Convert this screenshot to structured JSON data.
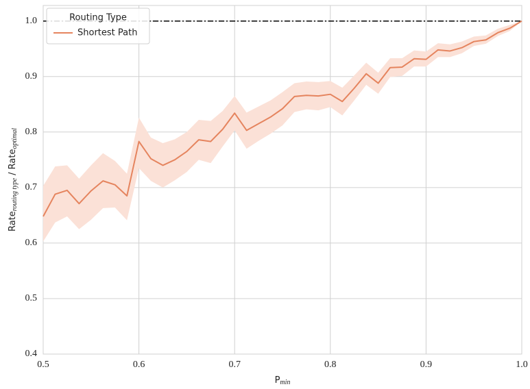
{
  "chart_data": {
    "type": "line",
    "xlabel": {
      "text": "P",
      "sub": "min"
    },
    "ylabel": {
      "parts": [
        {
          "text": "Rate",
          "sub": "routing type"
        },
        {
          "text": " / Rate",
          "sub": "optimal"
        }
      ]
    },
    "legend_title": "Routing Type",
    "legend": "upper left",
    "grid": true,
    "x": [
      0.5,
      0.5125,
      0.525,
      0.5375,
      0.55,
      0.5625,
      0.575,
      0.5875,
      0.6,
      0.6125,
      0.625,
      0.6375,
      0.65,
      0.6625,
      0.675,
      0.6875,
      0.7,
      0.7125,
      0.725,
      0.7375,
      0.75,
      0.7625,
      0.775,
      0.7875,
      0.8,
      0.8125,
      0.825,
      0.8375,
      0.85,
      0.8625,
      0.875,
      0.8875,
      0.9,
      0.9125,
      0.925,
      0.9375,
      0.95,
      0.9625,
      0.975,
      0.9875,
      1.0
    ],
    "series": [
      {
        "name": "Shortest Path",
        "color": "#e5845e",
        "band_color": "#fbe1d7",
        "values": [
          0.648,
          0.688,
          0.695,
          0.671,
          0.694,
          0.712,
          0.705,
          0.685,
          0.783,
          0.752,
          0.74,
          0.75,
          0.765,
          0.786,
          0.783,
          0.805,
          0.834,
          0.803,
          0.815,
          0.827,
          0.842,
          0.864,
          0.866,
          0.865,
          0.868,
          0.855,
          0.879,
          0.905,
          0.888,
          0.916,
          0.917,
          0.932,
          0.931,
          0.948,
          0.946,
          0.952,
          0.963,
          0.966,
          0.979,
          0.987,
          1.0
        ],
        "lower": [
          0.603,
          0.637,
          0.648,
          0.625,
          0.642,
          0.663,
          0.664,
          0.641,
          0.735,
          0.712,
          0.7,
          0.713,
          0.728,
          0.75,
          0.744,
          0.774,
          0.803,
          0.77,
          0.784,
          0.797,
          0.812,
          0.836,
          0.841,
          0.839,
          0.845,
          0.83,
          0.857,
          0.885,
          0.869,
          0.899,
          0.901,
          0.918,
          0.918,
          0.935,
          0.935,
          0.942,
          0.955,
          0.959,
          0.973,
          0.982,
          1.0
        ],
        "upper": [
          0.703,
          0.738,
          0.74,
          0.716,
          0.74,
          0.762,
          0.748,
          0.725,
          0.826,
          0.79,
          0.78,
          0.787,
          0.8,
          0.822,
          0.82,
          0.838,
          0.865,
          0.835,
          0.846,
          0.857,
          0.872,
          0.888,
          0.891,
          0.89,
          0.892,
          0.88,
          0.902,
          0.925,
          0.907,
          0.933,
          0.933,
          0.947,
          0.945,
          0.96,
          0.958,
          0.963,
          0.972,
          0.974,
          0.986,
          0.993,
          1.0
        ]
      }
    ],
    "hline": 1.0,
    "hline_color": "#000000",
    "xlim": [
      0.5,
      1.0
    ],
    "ylim": [
      0.4,
      1.028
    ],
    "xticks": [
      0.5,
      0.6,
      0.7,
      0.8,
      0.9,
      {
        "value": 1.0,
        "label": "1.0"
      }
    ],
    "yticks": [
      0.4,
      0.5,
      0.6,
      0.7,
      0.8,
      0.9,
      {
        "value": 1.0,
        "label": "1.0"
      }
    ]
  }
}
